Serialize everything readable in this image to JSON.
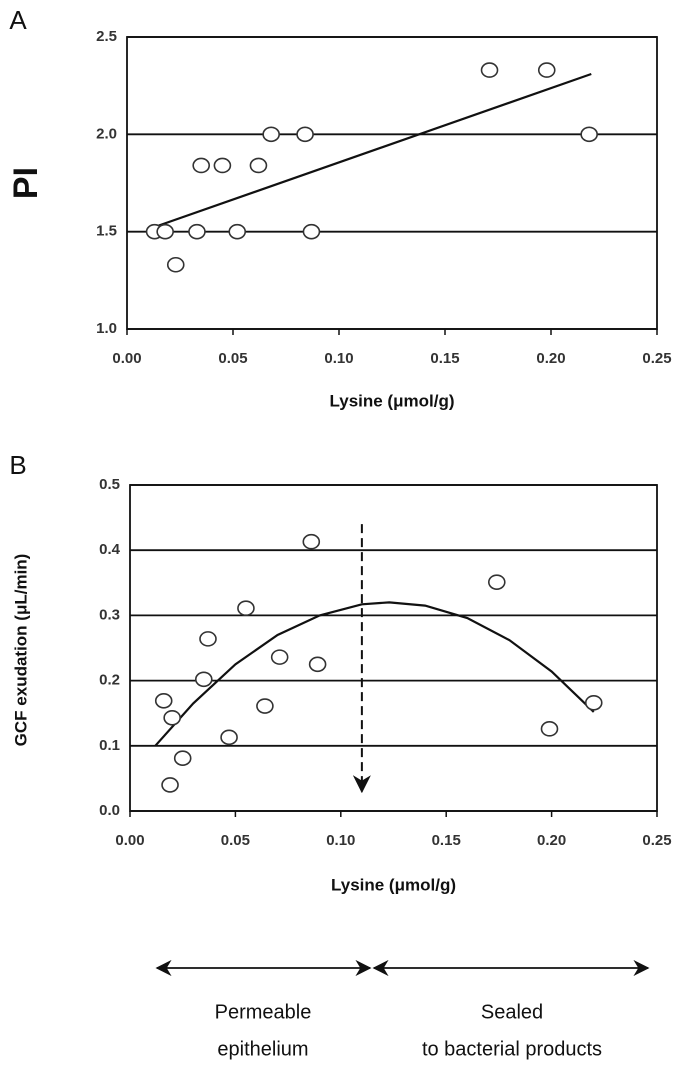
{
  "chart_data": [
    {
      "type": "scatter",
      "panel_label": "A",
      "xlabel": "Lysine (μmol/g)",
      "ylabel": "PI",
      "x": [
        0.013,
        0.018,
        0.023,
        0.033,
        0.035,
        0.045,
        0.052,
        0.062,
        0.068,
        0.084,
        0.087,
        0.171,
        0.198,
        0.218
      ],
      "y": [
        1.5,
        1.5,
        1.33,
        1.5,
        1.84,
        1.84,
        1.5,
        1.84,
        2.0,
        2.0,
        1.5,
        2.33,
        2.33,
        2.0
      ],
      "fit_line": {
        "x": [
          0.012,
          0.219
        ],
        "y": [
          1.52,
          2.31
        ]
      },
      "xlim": [
        0,
        0.25
      ],
      "xticks": [
        {
          "value": 0,
          "label": "0.00"
        },
        0.05,
        {
          "value": 0.1,
          "label": "0.10"
        },
        0.15,
        {
          "value": 0.2,
          "label": "0.20"
        },
        0.25
      ],
      "ylim": [
        1.0,
        2.5
      ],
      "yticks": [
        {
          "value": 1.0,
          "label": "1.0"
        },
        1.5,
        {
          "value": 2.0,
          "label": "2.0"
        },
        2.5
      ],
      "grid": true
    },
    {
      "type": "scatter",
      "panel_label": "B",
      "xlabel": "Lysine (μmol/g)",
      "ylabel": "GCF exudation (μL/min)",
      "x": [
        0.016,
        0.02,
        0.019,
        0.025,
        0.035,
        0.037,
        0.047,
        0.055,
        0.064,
        0.071,
        0.086,
        0.089,
        0.174,
        0.199,
        0.22
      ],
      "y": [
        0.169,
        0.143,
        0.04,
        0.081,
        0.202,
        0.264,
        0.113,
        0.311,
        0.161,
        0.236,
        0.413,
        0.225,
        0.351,
        0.126,
        0.166
      ],
      "fit_line": {
        "x": [
          0.012,
          0.03,
          0.05,
          0.07,
          0.09,
          0.11,
          0.123,
          0.14,
          0.16,
          0.18,
          0.2,
          0.22
        ],
        "y": [
          0.1,
          0.165,
          0.225,
          0.27,
          0.3,
          0.317,
          0.32,
          0.315,
          0.296,
          0.262,
          0.214,
          0.152
        ]
      },
      "dashed_arrow": {
        "x": 0.11,
        "y": [
          0.44,
          0.03
        ]
      },
      "xlim": [
        0,
        0.25
      ],
      "xticks": [
        {
          "value": 0,
          "label": "0.00"
        },
        0.05,
        {
          "value": 0.1,
          "label": "0.10"
        },
        0.15,
        {
          "value": 0.2,
          "label": "0.20"
        },
        0.25
      ],
      "ylim": [
        0,
        0.5
      ],
      "yticks": [
        {
          "value": 0,
          "label": "0.0"
        },
        0.1,
        0.2,
        0.3,
        0.4,
        0.5
      ],
      "grid": true,
      "annotations": [
        {
          "lines": [
            "Permeable",
            "epithelium"
          ]
        },
        {
          "lines": [
            "Sealed",
            "to bacterial products"
          ]
        }
      ]
    }
  ]
}
